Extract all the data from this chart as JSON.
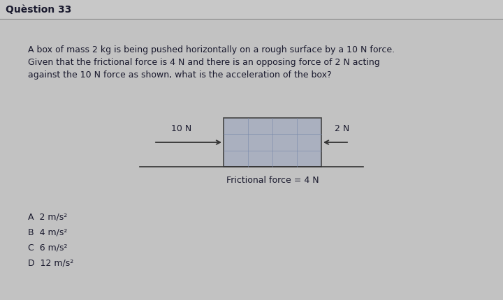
{
  "title": "Quèstion 33",
  "question_line1": "A box of mass 2 kg is being pushed horizontally on a rough surface by a 10 N force.",
  "question_line2": "Given that the frictional force is 4 N and there is an opposing force of 2 N acting",
  "question_line3": "against the 10 N force as shown, what is the acceleration of the box?",
  "force_left_label": "10 N",
  "force_right_label": "2 N",
  "friction_label": "Frictional force = 4 N",
  "options": [
    "A  2 m/s²",
    "B  4 m/s²",
    "C  6 m/s²",
    "D  12 m/s²"
  ],
  "bg_color": "#c2c2c2",
  "box_fill": "#aab0bf",
  "box_edge": "#444444",
  "text_color": "#1a1a2e",
  "title_bg": "#c8c8c8",
  "line_color": "#333333",
  "title_line_color": "#888888"
}
